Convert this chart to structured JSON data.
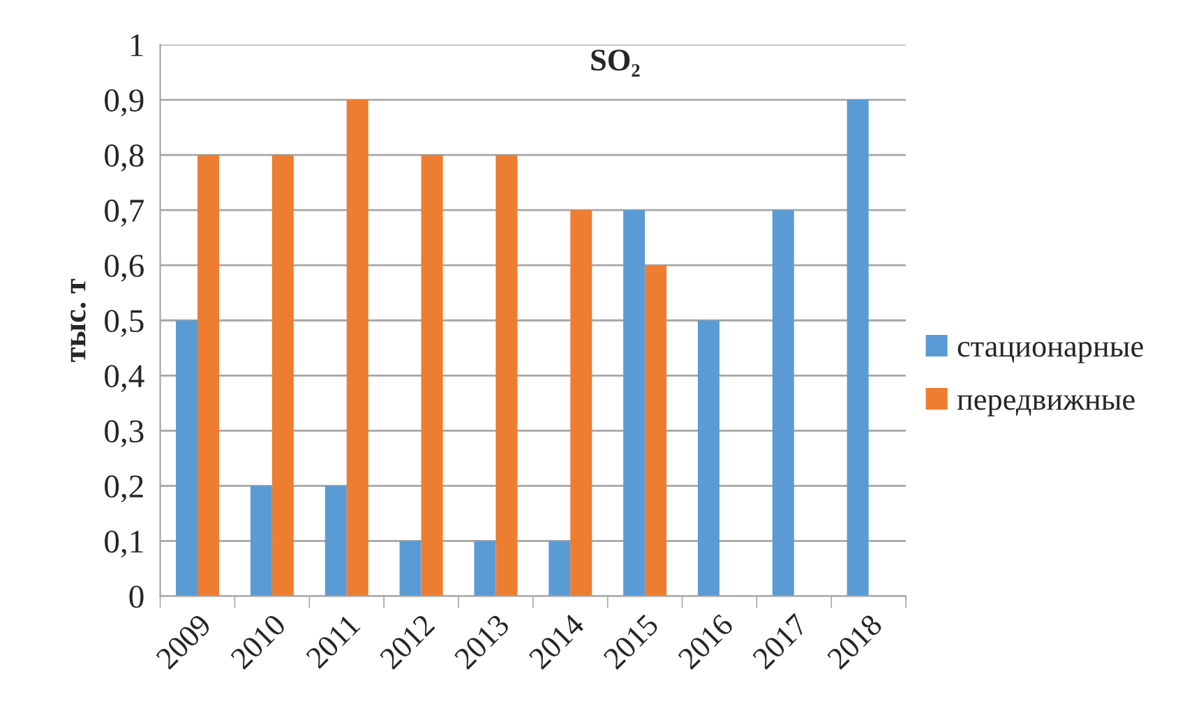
{
  "chart_data": {
    "type": "bar",
    "title": "SO₂",
    "ylabel": "тыс. т",
    "categories": [
      "2009",
      "2010",
      "2011",
      "2012",
      "2013",
      "2014",
      "2015",
      "2016",
      "2017",
      "2018"
    ],
    "series": [
      {
        "name": "стационарные",
        "color": "#5b9bd5",
        "values": [
          0.5,
          0.2,
          0.2,
          0.1,
          0.1,
          0.1,
          0.7,
          0.5,
          0.7,
          0.9
        ]
      },
      {
        "name": "передвижные",
        "color": "#ed7d31",
        "values": [
          0.8,
          0.8,
          0.9,
          0.8,
          0.8,
          0.7,
          0.6,
          null,
          null,
          null
        ]
      }
    ],
    "ylim": [
      0,
      1
    ],
    "yticks": [
      0,
      {
        "value": 0.1,
        "label": "0,1"
      },
      {
        "value": 0.2,
        "label": "0,2"
      },
      {
        "value": 0.3,
        "label": "0,3"
      },
      {
        "value": 0.4,
        "label": "0,4"
      },
      {
        "value": 0.5,
        "label": "0,5"
      },
      {
        "value": 0.6,
        "label": "0,6"
      },
      {
        "value": 0.7,
        "label": "0,7"
      },
      {
        "value": 0.8,
        "label": "0,8"
      },
      {
        "value": 0.9,
        "label": "0,9"
      },
      1
    ],
    "grid": "y",
    "legend": "right"
  }
}
